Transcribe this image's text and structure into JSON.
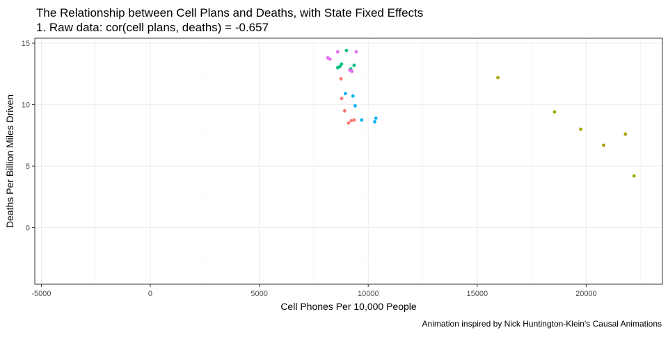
{
  "chart_data": {
    "type": "scatter",
    "title": "The Relationship between Cell Plans and Deaths, with State Fixed Effects",
    "subtitle": "1. Raw data: cor(cell plans, deaths) = -0.657",
    "xlabel": "Cell Phones Per 10,000 People",
    "ylabel": "Deaths Per Billion Miles Driven",
    "caption": "Animation inspired by Nick Huntington-Klein's Causal Animations",
    "xlim": [
      -5300,
      23500
    ],
    "ylim": [
      -4.6,
      15.4
    ],
    "x_ticks": [
      -5000,
      0,
      5000,
      10000,
      15000,
      20000
    ],
    "x_tick_labels": [
      "-5000",
      "0",
      "5000",
      "10000",
      "15000",
      "20000"
    ],
    "y_ticks": [
      0,
      5,
      10,
      15
    ],
    "y_tick_labels": [
      "0",
      "5",
      "10",
      "15"
    ],
    "grid": true,
    "legend": "none",
    "colors": {
      "red": "#F8766D",
      "olive": "#A3A500",
      "green": "#00BF7D",
      "blue": "#00B0F6",
      "magenta": "#E76BF3"
    },
    "series": [
      {
        "color": "#F8766D",
        "points": [
          [
            8750,
            12.1
          ],
          [
            8780,
            10.5
          ],
          [
            8920,
            9.5
          ],
          [
            9100,
            8.5
          ],
          [
            9220,
            8.7
          ],
          [
            9350,
            8.75
          ]
        ]
      },
      {
        "color": "#A3A500",
        "points": [
          [
            15950,
            12.2
          ],
          [
            18550,
            9.4
          ],
          [
            19750,
            8.0
          ],
          [
            20800,
            6.7
          ],
          [
            21800,
            7.6
          ],
          [
            22200,
            4.2
          ]
        ]
      },
      {
        "color": "#00BF7D",
        "points": [
          [
            8600,
            13.0
          ],
          [
            8700,
            13.1
          ],
          [
            8780,
            13.3
          ],
          [
            9000,
            14.4
          ],
          [
            9200,
            12.9
          ],
          [
            9350,
            13.2
          ]
        ]
      },
      {
        "color": "#00B0F6",
        "points": [
          [
            8950,
            10.9
          ],
          [
            9300,
            10.7
          ],
          [
            9400,
            9.9
          ],
          [
            9700,
            8.75
          ],
          [
            10300,
            8.6
          ],
          [
            10350,
            8.9
          ]
        ]
      },
      {
        "color": "#E76BF3",
        "points": [
          [
            8150,
            13.8
          ],
          [
            8250,
            13.7
          ],
          [
            8600,
            14.3
          ],
          [
            9150,
            12.8
          ],
          [
            9250,
            12.7
          ],
          [
            9450,
            14.3
          ]
        ]
      }
    ]
  }
}
